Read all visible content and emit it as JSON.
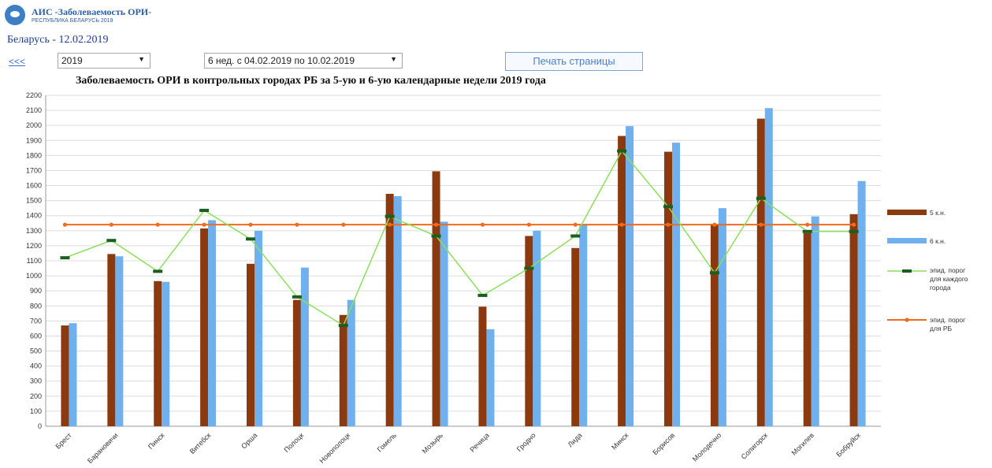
{
  "header": {
    "app_title": "АИС -Заболеваемость ОРИ-",
    "app_subtitle": "РЕСПУБЛИКА БЕЛАРУСЬ 2019",
    "country_date": "Беларусь - 12.02.2019"
  },
  "toolbar": {
    "back_link": "<<<",
    "year_select": "2019",
    "week_select": "6 нед. с 04.02.2019 по 10.02.2019",
    "print_button": "Печать страницы"
  },
  "colors": {
    "week5": "#8b3a0f",
    "week6": "#6fb0ee",
    "city_threshold": "#8be05a",
    "city_threshold_marker": "#1b5e20",
    "rb_threshold": "#f26a1b"
  },
  "chart_data": {
    "type": "bar",
    "title": "Заболеваемость ОРИ в контрольных городах РБ за 5-ую и 6-ую календарные недели 2019 года",
    "ylim": [
      0,
      2200
    ],
    "yticks": [
      0,
      100,
      200,
      300,
      400,
      500,
      600,
      700,
      800,
      900,
      1000,
      1100,
      1200,
      1300,
      1400,
      1500,
      1600,
      1700,
      1800,
      1900,
      2000,
      2100,
      2200
    ],
    "grid": true,
    "legend_position": "right",
    "categories": [
      "Брест",
      "Барановичи",
      "Пинск",
      "Витебск",
      "Орша",
      "Полоцк",
      "Новополоцк",
      "Гомель",
      "Мозырь",
      "Речица",
      "Гродно",
      "Лида",
      "Минск",
      "Борисов",
      "Молодечно",
      "Солигорск",
      "Могилев",
      "Бобруйск"
    ],
    "series": [
      {
        "name": "5 к.н.",
        "type": "bar",
        "values": [
          670,
          1145,
          965,
          1315,
          1080,
          840,
          740,
          1545,
          1695,
          795,
          1265,
          1185,
          1930,
          1825,
          1345,
          2045,
          1285,
          1410
        ]
      },
      {
        "name": "6 к.н.",
        "type": "bar",
        "values": [
          685,
          1130,
          960,
          1370,
          1300,
          1055,
          840,
          1530,
          1360,
          645,
          1300,
          1340,
          1995,
          1885,
          1450,
          2115,
          1395,
          1630
        ]
      },
      {
        "name": "эпид. порог для каждого города",
        "type": "line",
        "values": [
          1120,
          1235,
          1030,
          1435,
          1245,
          860,
          670,
          1395,
          1265,
          870,
          1050,
          1265,
          1830,
          1460,
          1020,
          1515,
          1295,
          1295
        ]
      },
      {
        "name": "эпид. порог для РБ",
        "type": "line",
        "values": [
          1340,
          1340,
          1340,
          1340,
          1340,
          1340,
          1340,
          1340,
          1340,
          1340,
          1340,
          1340,
          1340,
          1340,
          1340,
          1340,
          1340,
          1340
        ]
      }
    ]
  }
}
